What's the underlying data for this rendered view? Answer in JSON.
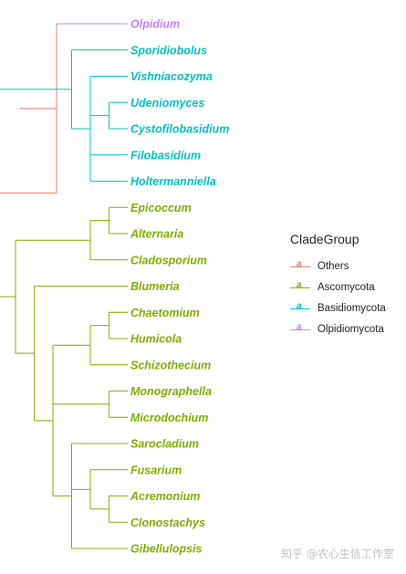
{
  "colors": {
    "Others": "#F8766D",
    "Ascomycota": "#7CAE00",
    "Basidiomycota": "#00BFC4",
    "Olpidiomycota": "#C77CFF"
  },
  "taxa": [
    {
      "name": "Olpidium",
      "group": "Olpidiomycota"
    },
    {
      "name": "Sporidiobolus",
      "group": "Basidiomycota"
    },
    {
      "name": "Vishniacozyma",
      "group": "Basidiomycota"
    },
    {
      "name": "Udeniomyces",
      "group": "Basidiomycota"
    },
    {
      "name": "Cystofilobasidium",
      "group": "Basidiomycota"
    },
    {
      "name": "Filobasidium",
      "group": "Basidiomycota"
    },
    {
      "name": "Holtermanniella",
      "group": "Basidiomycota"
    },
    {
      "name": "Epicoccum",
      "group": "Ascomycota"
    },
    {
      "name": "Alternaria",
      "group": "Ascomycota"
    },
    {
      "name": "Cladosporium",
      "group": "Ascomycota"
    },
    {
      "name": "Blumeria",
      "group": "Ascomycota"
    },
    {
      "name": "Chaetomium",
      "group": "Ascomycota"
    },
    {
      "name": "Humicola",
      "group": "Ascomycota"
    },
    {
      "name": "Schizothecium",
      "group": "Ascomycota"
    },
    {
      "name": "Monographella",
      "group": "Ascomycota"
    },
    {
      "name": "Microdochium",
      "group": "Ascomycota"
    },
    {
      "name": "Sarocladium",
      "group": "Ascomycota"
    },
    {
      "name": "Fusarium",
      "group": "Ascomycota"
    },
    {
      "name": "Acremonium",
      "group": "Ascomycota"
    },
    {
      "name": "Clonostachys",
      "group": "Ascomycota"
    },
    {
      "name": "Gibellulopsis",
      "group": "Ascomycota"
    }
  ],
  "tree": {
    "group": "Others",
    "children": [
      {
        "tip": 0
      },
      {
        "group": "Others",
        "children": [
          {
            "group": "Basidiomycota",
            "children": [
              {
                "tip": 1
              },
              {
                "group": "Basidiomycota",
                "children": [
                  {
                    "tip": 2
                  },
                  {
                    "group": "Basidiomycota",
                    "children": [
                      {
                        "tip": 3
                      },
                      {
                        "tip": 4
                      }
                    ]
                  },
                  {
                    "tip": 5
                  },
                  {
                    "tip": 6
                  }
                ]
              }
            ]
          },
          {
            "group": "Ascomycota",
            "children": [
              {
                "group": "Ascomycota",
                "children": [
                  {
                    "group": "Ascomycota",
                    "children": [
                      {
                        "tip": 7
                      },
                      {
                        "tip": 8
                      }
                    ]
                  },
                  {
                    "tip": 9
                  }
                ]
              },
              {
                "group": "Ascomycota",
                "children": [
                  {
                    "tip": 10
                  },
                  {
                    "group": "Ascomycota",
                    "children": [
                      {
                        "group": "Ascomycota",
                        "children": [
                          {
                            "group": "Ascomycota",
                            "children": [
                              {
                                "tip": 11
                              },
                              {
                                "tip": 12
                              }
                            ]
                          },
                          {
                            "tip": 13
                          }
                        ]
                      },
                      {
                        "group": "Ascomycota",
                        "children": [
                          {
                            "tip": 14
                          },
                          {
                            "tip": 15
                          }
                        ]
                      },
                      {
                        "group": "Ascomycota",
                        "children": [
                          {
                            "tip": 16
                          },
                          {
                            "group": "Ascomycota",
                            "children": [
                              {
                                "tip": 17
                              },
                              {
                                "group": "Ascomycota",
                                "children": [
                                  {
                                    "tip": 18
                                  },
                                  {
                                    "tip": 19
                                  }
                                ]
                              }
                            ]
                          },
                          {
                            "tip": 20
                          }
                        ]
                      }
                    ]
                  }
                ]
              }
            ]
          }
        ]
      }
    ]
  },
  "legend": {
    "title": "CladeGroup",
    "glyph": "a",
    "items": [
      {
        "label": "Others",
        "group": "Others"
      },
      {
        "label": "Ascomycota",
        "group": "Ascomycota"
      },
      {
        "label": "Basidiomycota",
        "group": "Basidiomycota"
      },
      {
        "label": "Olpidiomycota",
        "group": "Olpidiomycota"
      }
    ]
  },
  "watermark": "知乎 @农心生信工作室"
}
